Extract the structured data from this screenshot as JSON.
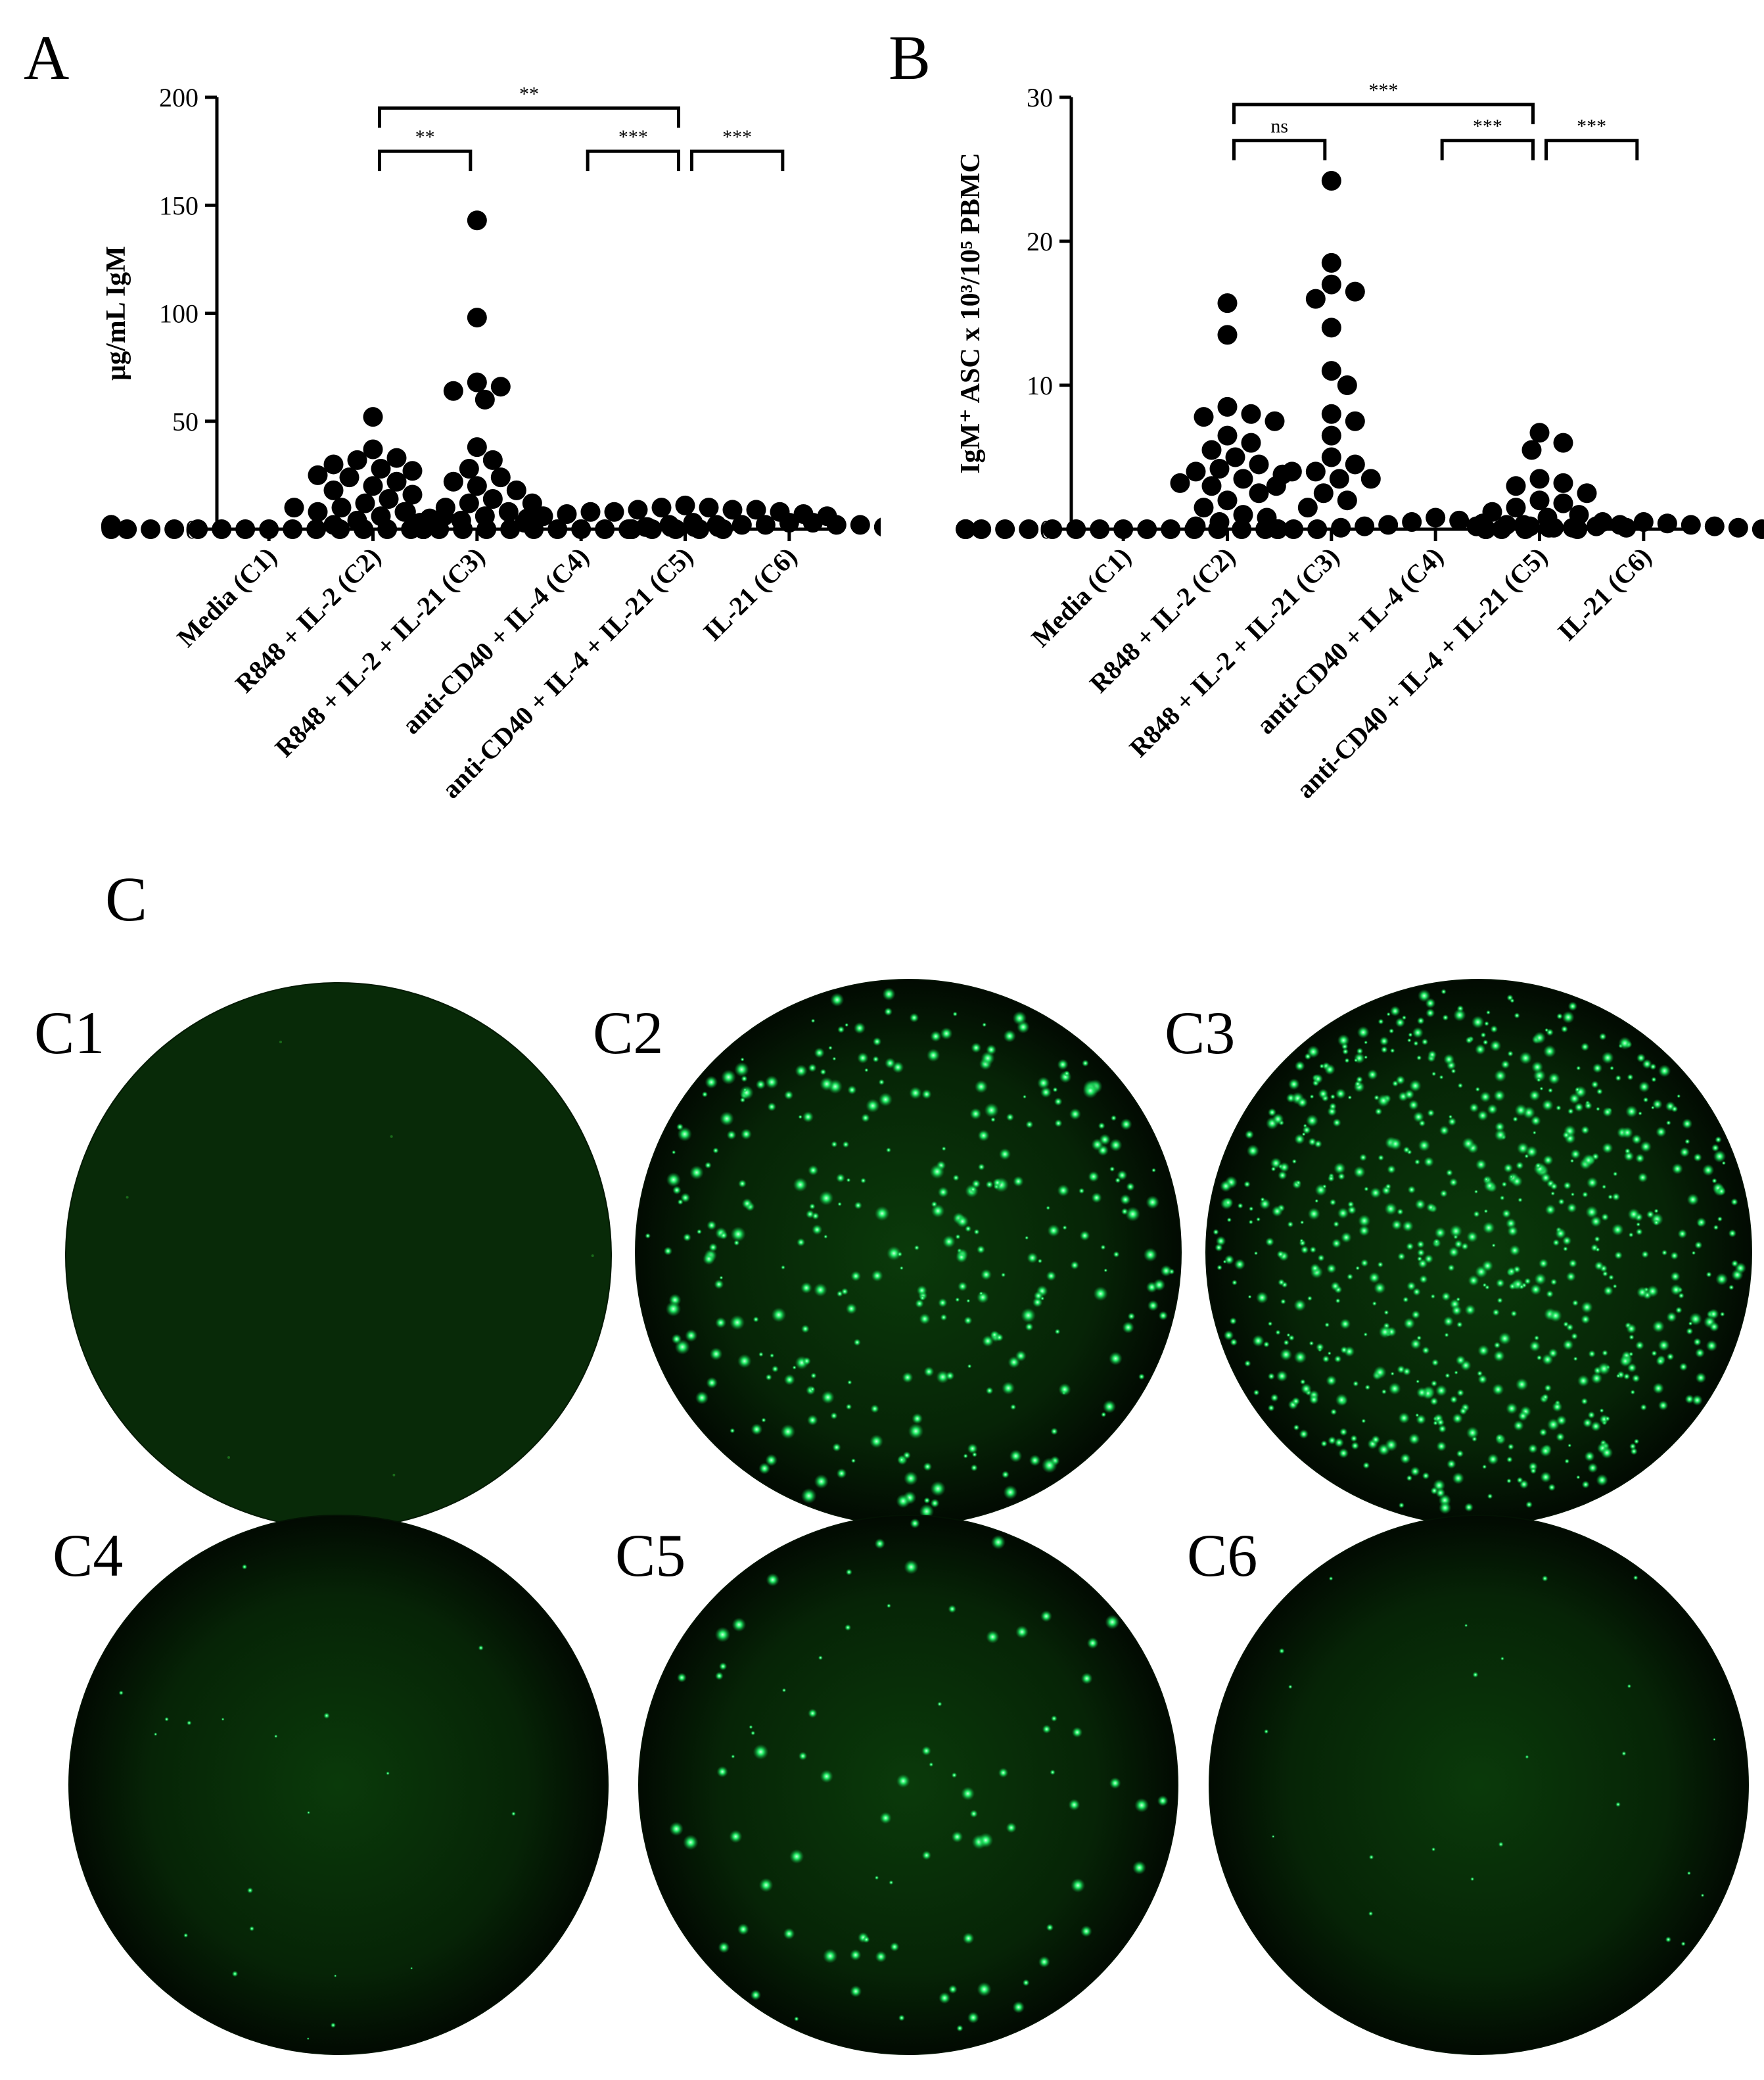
{
  "figure": {
    "panels": {
      "a": "A",
      "b": "B",
      "c": "C"
    },
    "wells": [
      {
        "label": "C1",
        "spots": 6
      },
      {
        "label": "C2",
        "spots": 320
      },
      {
        "label": "C3",
        "spots": 720
      },
      {
        "label": "C4",
        "spots": 20
      },
      {
        "label": "C5",
        "spots": 85
      },
      {
        "label": "C6",
        "spots": 24
      }
    ]
  },
  "chart_data": [
    {
      "type": "scatter",
      "panel": "A",
      "ylabel": "μg/mL IgM",
      "ylim": [
        0,
        200
      ],
      "yticks": [
        0,
        50,
        100,
        150,
        200
      ],
      "categories": [
        "Media (C1)",
        "R848 + IL-2 (C2)",
        "R848 + IL-2 + IL-21 (C3)",
        "anti-CD40 + IL-4 (C4)",
        "anti-CD40 + IL-4 + IL-21 (C5)",
        "IL-21 (C6)"
      ],
      "points": [
        [
          0,
          0,
          0,
          0,
          0,
          0,
          0,
          0,
          0,
          0,
          0,
          0,
          0,
          0,
          1,
          1,
          1,
          2,
          2,
          2,
          1
        ],
        [
          52,
          37,
          33,
          32,
          30,
          28,
          27,
          25,
          24,
          22,
          20,
          18,
          16,
          14,
          12,
          10,
          8,
          6,
          4,
          3,
          2,
          8,
          6,
          10
        ],
        [
          143,
          98,
          68,
          66,
          64,
          60,
          38,
          32,
          28,
          24,
          22,
          20,
          18,
          14,
          12,
          10,
          8,
          6,
          5,
          4,
          3,
          12,
          8
        ],
        [
          0,
          0,
          0,
          0,
          0,
          0,
          0,
          0,
          0,
          0,
          0,
          0,
          0,
          0,
          0,
          0,
          0,
          0,
          0,
          0,
          0
        ],
        [
          11,
          10,
          10,
          9,
          9,
          9,
          8,
          8,
          8,
          7,
          7,
          6,
          6,
          5,
          5,
          4,
          4,
          3,
          3,
          2,
          2,
          1
        ],
        [
          3,
          3,
          2,
          2,
          2,
          2,
          1,
          1,
          1,
          1,
          1,
          1,
          1,
          0,
          0,
          0,
          0,
          0,
          0,
          0
        ]
      ],
      "brackets": [
        {
          "from": 1,
          "to": 2,
          "label": "**",
          "y": 175
        },
        {
          "from": 1,
          "to": 4,
          "label": "**",
          "y": 195
        },
        {
          "from": 3,
          "to": 4,
          "label": "***",
          "y": 175
        },
        {
          "from": 4,
          "to": 5,
          "label": "***",
          "y": 175
        }
      ]
    },
    {
      "type": "scatter",
      "panel": "B",
      "ylabel": "IgM⁺ ASC x 10³/10⁵ PBMC",
      "ylim": [
        0,
        30
      ],
      "yticks": [
        0,
        10,
        20,
        30
      ],
      "categories": [
        "Media (C1)",
        "R848 + IL-2 (C2)",
        "R848 + IL-2 + IL-21 (C3)",
        "anti-CD40 + IL-4 (C4)",
        "anti-CD40 + IL-4 + IL-21 (C5)",
        "IL-21 (C6)"
      ],
      "points": [
        [
          0,
          0,
          0,
          0,
          0,
          0,
          0,
          0,
          0,
          0,
          0,
          0,
          0,
          0,
          0,
          0,
          0,
          0
        ],
        [
          15.7,
          13.5,
          8.5,
          8,
          7.8,
          7.5,
          6.5,
          6,
          5.5,
          5,
          4.5,
          4.2,
          4,
          3.8,
          3.5,
          3.2,
          3,
          2.5,
          2,
          1.5,
          1,
          0.8,
          0.5,
          0.2
        ],
        [
          24.2,
          18.5,
          17,
          16.5,
          16,
          14,
          11,
          10,
          8,
          7.5,
          6.5,
          5,
          4.5,
          4,
          4,
          3.5,
          3.5,
          3,
          2.5,
          2,
          1.5
        ],
        [
          0.8,
          0.6,
          0.5,
          0.4,
          0.3,
          0.3,
          0.2,
          0.2,
          0.1,
          0.1,
          0,
          0,
          0,
          0,
          0,
          0,
          0,
          0
        ],
        [
          6.7,
          6,
          5.5,
          3.5,
          3.2,
          3,
          2.5,
          2,
          1.8,
          1.5,
          1.2,
          1,
          0.8,
          0.5,
          0.3,
          0.2,
          0.1
        ],
        [
          0.5,
          0.4,
          0.3,
          0.3,
          0.2,
          0.2,
          0.1,
          0.1,
          0.1,
          0,
          0,
          0,
          0,
          0,
          0,
          0
        ]
      ],
      "brackets": [
        {
          "from": 1,
          "to": 2,
          "label": "ns",
          "y": 27
        },
        {
          "from": 1,
          "to": 4,
          "label": "***",
          "y": 29.5
        },
        {
          "from": 3,
          "to": 4,
          "label": "***",
          "y": 27
        },
        {
          "from": 4,
          "to": 5,
          "label": "***",
          "y": 27
        }
      ]
    }
  ]
}
